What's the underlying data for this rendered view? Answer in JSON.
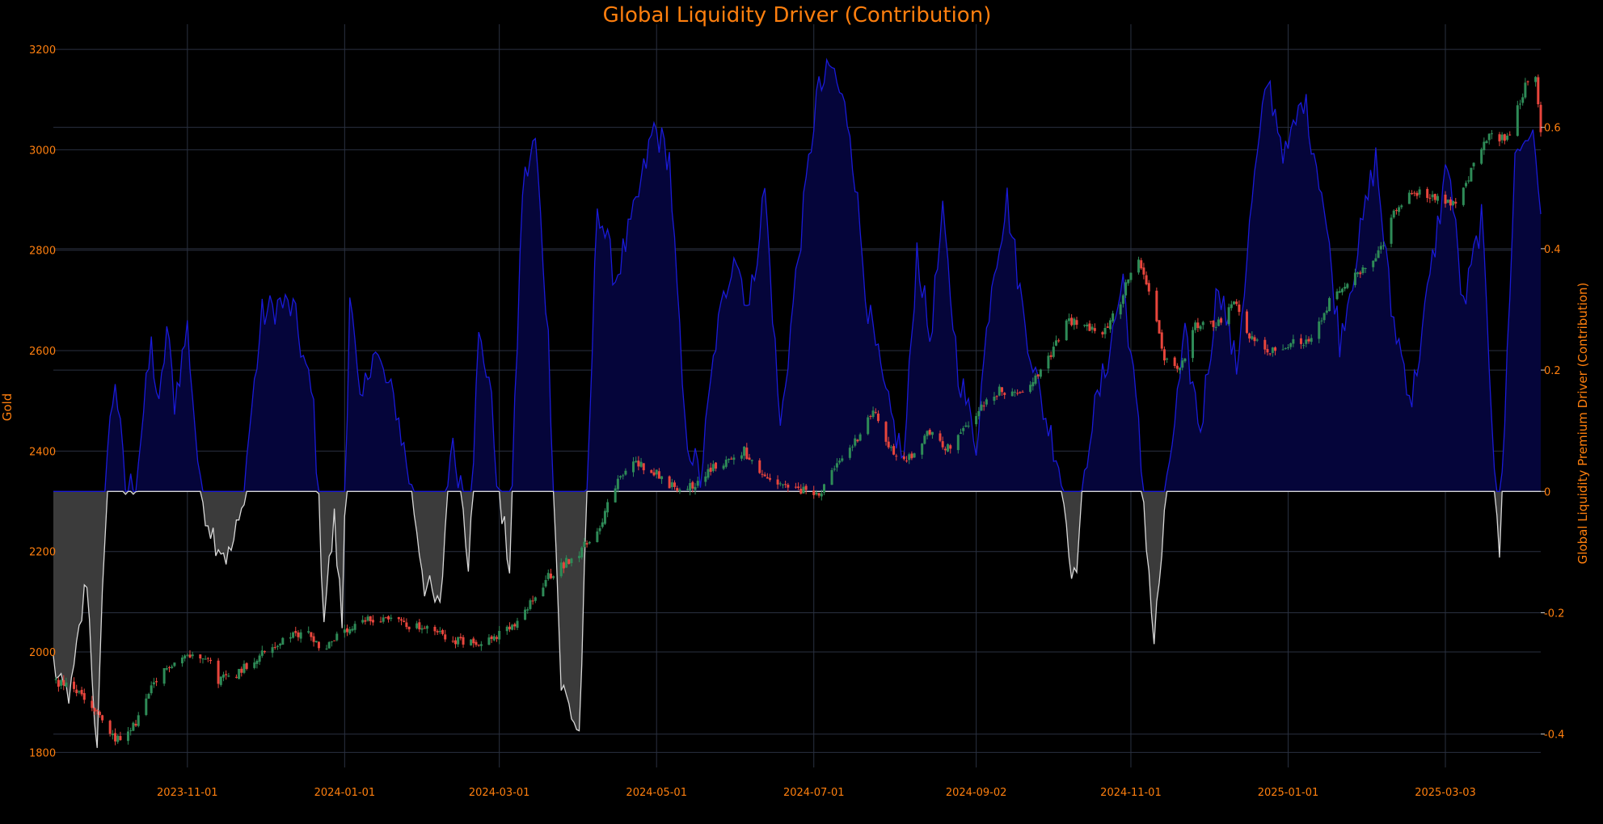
{
  "chart_data": {
    "type": "candlestick",
    "title": "Global Liquidity Driver (Contribution)",
    "y_left_label": "Gold",
    "y_right_label": "Global Liquidity Premium Driver (Contribution)",
    "x_range": [
      "2023-09-10",
      "2025-04-09"
    ],
    "x_ticks": [
      "2023-11-01",
      "2024-01-01",
      "2024-03-01",
      "2024-05-01",
      "2024-07-01",
      "2024-09-02",
      "2024-11-01",
      "2025-01-01",
      "2025-03-03"
    ],
    "y_left_ticks": [
      1800,
      2000,
      2200,
      2400,
      2600,
      2800,
      3000,
      3200
    ],
    "y_left_range": [
      1770,
      3250
    ],
    "y_right_ticks": [
      -0.4,
      -0.2,
      0,
      0.2,
      0.4,
      0.6
    ],
    "y_right_range": [
      -0.455,
      0.77
    ],
    "grid": true,
    "colors": {
      "up": "#2e8b57",
      "down": "#e8453c",
      "positive_line": "#1a1ad8",
      "positive_fill": "#05053a",
      "negative_line": "#d8d8d8",
      "negative_fill": "#3b3b3b",
      "text": "#ff7f0e",
      "background": "#000000"
    },
    "gold_anchors": [
      [
        "2023-09-10",
        1945
      ],
      [
        "2023-09-20",
        1918
      ],
      [
        "2023-09-28",
        1870
      ],
      [
        "2023-10-03",
        1830
      ],
      [
        "2023-10-08",
        1825
      ],
      [
        "2023-10-13",
        1870
      ],
      [
        "2023-10-18",
        1925
      ],
      [
        "2023-10-25",
        1975
      ],
      [
        "2023-10-31",
        1992
      ],
      [
        "2023-11-08",
        1995
      ],
      [
        "2023-11-13",
        1945
      ],
      [
        "2023-11-20",
        1958
      ],
      [
        "2023-11-28",
        1990
      ],
      [
        "2023-12-04",
        2010
      ],
      [
        "2023-12-11",
        2030
      ],
      [
        "2023-12-18",
        2040
      ],
      [
        "2023-12-24",
        2000
      ],
      [
        "2023-12-27",
        2025
      ],
      [
        "2024-01-03",
        2040
      ],
      [
        "2024-01-08",
        2060
      ],
      [
        "2024-01-18",
        2070
      ],
      [
        "2024-01-25",
        2055
      ],
      [
        "2024-02-05",
        2040
      ],
      [
        "2024-02-15",
        2020
      ],
      [
        "2024-02-27",
        2025
      ],
      [
        "2024-03-08",
        2055
      ],
      [
        "2024-03-20",
        2150
      ],
      [
        "2024-04-01",
        2200
      ],
      [
        "2024-04-08",
        2240
      ],
      [
        "2024-04-15",
        2330
      ],
      [
        "2024-04-22",
        2380
      ],
      [
        "2024-04-30",
        2360
      ],
      [
        "2024-05-07",
        2330
      ],
      [
        "2024-05-15",
        2330
      ],
      [
        "2024-05-21",
        2360
      ],
      [
        "2024-06-04",
        2400
      ],
      [
        "2024-06-11",
        2345
      ],
      [
        "2024-06-19",
        2330
      ],
      [
        "2024-06-26",
        2320
      ],
      [
        "2024-07-04",
        2320
      ],
      [
        "2024-07-10",
        2370
      ],
      [
        "2024-07-17",
        2420
      ],
      [
        "2024-07-24",
        2480
      ],
      [
        "2024-07-31",
        2400
      ],
      [
        "2024-08-07",
        2385
      ],
      [
        "2024-08-15",
        2440
      ],
      [
        "2024-08-21",
        2400
      ],
      [
        "2024-08-28",
        2440
      ],
      [
        "2024-09-04",
        2490
      ],
      [
        "2024-09-11",
        2520
      ],
      [
        "2024-09-18",
        2510
      ],
      [
        "2024-09-25",
        2550
      ],
      [
        "2024-10-02",
        2600
      ],
      [
        "2024-10-07",
        2660
      ],
      [
        "2024-10-14",
        2650
      ],
      [
        "2024-10-21",
        2635
      ],
      [
        "2024-10-28",
        2700
      ],
      [
        "2024-11-01",
        2760
      ],
      [
        "2024-11-04",
        2790
      ],
      [
        "2024-11-08",
        2720
      ],
      [
        "2024-11-14",
        2580
      ],
      [
        "2024-11-20",
        2560
      ],
      [
        "2024-11-26",
        2650
      ],
      [
        "2024-12-04",
        2650
      ],
      [
        "2024-12-11",
        2700
      ],
      [
        "2024-12-18",
        2620
      ],
      [
        "2024-12-26",
        2600
      ],
      [
        "2025-01-03",
        2620
      ],
      [
        "2025-01-10",
        2620
      ],
      [
        "2025-01-17",
        2700
      ],
      [
        "2025-01-24",
        2740
      ],
      [
        "2025-01-31",
        2760
      ],
      [
        "2025-02-06",
        2800
      ],
      [
        "2025-02-11",
        2880
      ],
      [
        "2025-02-18",
        2920
      ],
      [
        "2025-02-25",
        2910
      ],
      [
        "2025-03-03",
        2890
      ],
      [
        "2025-03-08",
        2900
      ],
      [
        "2025-03-14",
        2970
      ],
      [
        "2025-03-20",
        3030
      ],
      [
        "2025-03-27",
        3020
      ],
      [
        "2025-04-01",
        3100
      ],
      [
        "2025-04-04",
        3140
      ],
      [
        "2025-04-07",
        3150
      ],
      [
        "2025-04-09",
        3030
      ]
    ],
    "driver_anchors": [
      [
        "2023-09-10",
        -0.28
      ],
      [
        "2023-09-13",
        -0.33
      ],
      [
        "2023-09-17",
        -0.33
      ],
      [
        "2023-09-23",
        -0.14
      ],
      [
        "2023-09-27",
        -0.44
      ],
      [
        "2023-10-01",
        0.07
      ],
      [
        "2023-10-04",
        0.19
      ],
      [
        "2023-10-08",
        0.0
      ],
      [
        "2023-10-12",
        0.02
      ],
      [
        "2023-10-18",
        0.24
      ],
      [
        "2023-10-21",
        0.13
      ],
      [
        "2023-10-24",
        0.27
      ],
      [
        "2023-10-27",
        0.15
      ],
      [
        "2023-11-01",
        0.27
      ],
      [
        "2023-11-06",
        0.0
      ],
      [
        "2023-11-11",
        -0.07
      ],
      [
        "2023-11-17",
        -0.11
      ],
      [
        "2023-11-22",
        -0.04
      ],
      [
        "2023-11-25",
        0.1
      ],
      [
        "2023-11-30",
        0.29
      ],
      [
        "2023-12-07",
        0.31
      ],
      [
        "2023-12-12",
        0.3
      ],
      [
        "2023-12-20",
        0.14
      ],
      [
        "2023-12-24",
        -0.2
      ],
      [
        "2023-12-28",
        -0.05
      ],
      [
        "2023-12-31",
        -0.22
      ],
      [
        "2024-01-03",
        0.33
      ],
      [
        "2024-01-07",
        0.13
      ],
      [
        "2024-01-12",
        0.24
      ],
      [
        "2024-01-17",
        0.18
      ],
      [
        "2024-01-21",
        0.14
      ],
      [
        "2024-01-27",
        0.0
      ],
      [
        "2024-02-01",
        -0.15
      ],
      [
        "2024-02-07",
        -0.2
      ],
      [
        "2024-02-11",
        0.08
      ],
      [
        "2024-02-15",
        0.02
      ],
      [
        "2024-02-18",
        -0.11
      ],
      [
        "2024-02-22",
        0.25
      ],
      [
        "2024-02-26",
        0.19
      ],
      [
        "2024-03-01",
        -0.02
      ],
      [
        "2024-03-05",
        -0.12
      ],
      [
        "2024-03-10",
        0.5
      ],
      [
        "2024-03-15",
        0.58
      ],
      [
        "2024-03-20",
        0.25
      ],
      [
        "2024-03-25",
        -0.32
      ],
      [
        "2024-04-01",
        -0.4
      ],
      [
        "2024-04-08",
        0.48
      ],
      [
        "2024-04-15",
        0.35
      ],
      [
        "2024-04-22",
        0.45
      ],
      [
        "2024-04-30",
        0.6
      ],
      [
        "2024-05-06",
        0.55
      ],
      [
        "2024-05-12",
        0.1
      ],
      [
        "2024-05-18",
        0.02
      ],
      [
        "2024-05-24",
        0.25
      ],
      [
        "2024-05-31",
        0.4
      ],
      [
        "2024-06-06",
        0.3
      ],
      [
        "2024-06-12",
        0.5
      ],
      [
        "2024-06-18",
        0.1
      ],
      [
        "2024-06-24",
        0.35
      ],
      [
        "2024-07-02",
        0.65
      ],
      [
        "2024-07-08",
        0.7
      ],
      [
        "2024-07-15",
        0.6
      ],
      [
        "2024-07-22",
        0.3
      ],
      [
        "2024-07-29",
        0.15
      ],
      [
        "2024-08-05",
        0.05
      ],
      [
        "2024-08-10",
        0.4
      ],
      [
        "2024-08-15",
        0.25
      ],
      [
        "2024-08-20",
        0.45
      ],
      [
        "2024-08-26",
        0.2
      ],
      [
        "2024-09-02",
        0.08
      ],
      [
        "2024-09-08",
        0.35
      ],
      [
        "2024-09-14",
        0.48
      ],
      [
        "2024-09-20",
        0.3
      ],
      [
        "2024-09-27",
        0.15
      ],
      [
        "2024-10-04",
        0.05
      ],
      [
        "2024-10-10",
        -0.15
      ],
      [
        "2024-10-16",
        0.1
      ],
      [
        "2024-10-22",
        0.2
      ],
      [
        "2024-10-29",
        0.35
      ],
      [
        "2024-11-04",
        0.1
      ],
      [
        "2024-11-10",
        -0.25
      ],
      [
        "2024-11-16",
        0.05
      ],
      [
        "2024-11-22",
        0.25
      ],
      [
        "2024-11-28",
        0.1
      ],
      [
        "2024-12-05",
        0.35
      ],
      [
        "2024-12-12",
        0.2
      ],
      [
        "2024-12-18",
        0.48
      ],
      [
        "2024-12-24",
        0.68
      ],
      [
        "2024-12-31",
        0.55
      ],
      [
        "2025-01-07",
        0.65
      ],
      [
        "2025-01-14",
        0.5
      ],
      [
        "2025-01-21",
        0.25
      ],
      [
        "2025-01-28",
        0.4
      ],
      [
        "2025-02-04",
        0.55
      ],
      [
        "2025-02-10",
        0.3
      ],
      [
        "2025-02-18",
        0.15
      ],
      [
        "2025-02-25",
        0.35
      ],
      [
        "2025-03-04",
        0.55
      ],
      [
        "2025-03-10",
        0.3
      ],
      [
        "2025-03-17",
        0.45
      ],
      [
        "2025-03-24",
        -0.1
      ],
      [
        "2025-03-30",
        0.55
      ],
      [
        "2025-04-05",
        0.6
      ],
      [
        "2025-04-09",
        0.48
      ]
    ]
  }
}
